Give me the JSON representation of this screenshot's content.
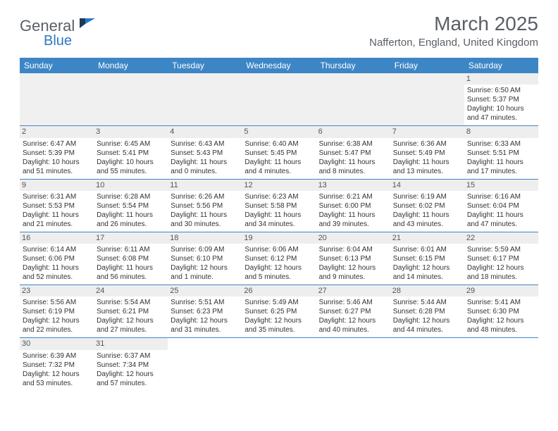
{
  "brand": {
    "name1": "General",
    "name2": "Blue"
  },
  "title": "March 2025",
  "location": "Nafferton, England, United Kingdom",
  "colors": {
    "header_bg": "#3d86c6",
    "header_text": "#ffffff",
    "text": "#333333",
    "title_color": "#5a5f66",
    "brand_blue": "#2b79c2",
    "daynum_bg": "#eeeeee",
    "border": "#3d86c6"
  },
  "weekdays": [
    "Sunday",
    "Monday",
    "Tuesday",
    "Wednesday",
    "Thursday",
    "Friday",
    "Saturday"
  ],
  "weeks": [
    [
      null,
      null,
      null,
      null,
      null,
      null,
      {
        "d": "1",
        "sr": "Sunrise: 6:50 AM",
        "ss": "Sunset: 5:37 PM",
        "dl1": "Daylight: 10 hours",
        "dl2": "and 47 minutes."
      }
    ],
    [
      {
        "d": "2",
        "sr": "Sunrise: 6:47 AM",
        "ss": "Sunset: 5:39 PM",
        "dl1": "Daylight: 10 hours",
        "dl2": "and 51 minutes."
      },
      {
        "d": "3",
        "sr": "Sunrise: 6:45 AM",
        "ss": "Sunset: 5:41 PM",
        "dl1": "Daylight: 10 hours",
        "dl2": "and 55 minutes."
      },
      {
        "d": "4",
        "sr": "Sunrise: 6:43 AM",
        "ss": "Sunset: 5:43 PM",
        "dl1": "Daylight: 11 hours",
        "dl2": "and 0 minutes."
      },
      {
        "d": "5",
        "sr": "Sunrise: 6:40 AM",
        "ss": "Sunset: 5:45 PM",
        "dl1": "Daylight: 11 hours",
        "dl2": "and 4 minutes."
      },
      {
        "d": "6",
        "sr": "Sunrise: 6:38 AM",
        "ss": "Sunset: 5:47 PM",
        "dl1": "Daylight: 11 hours",
        "dl2": "and 8 minutes."
      },
      {
        "d": "7",
        "sr": "Sunrise: 6:36 AM",
        "ss": "Sunset: 5:49 PM",
        "dl1": "Daylight: 11 hours",
        "dl2": "and 13 minutes."
      },
      {
        "d": "8",
        "sr": "Sunrise: 6:33 AM",
        "ss": "Sunset: 5:51 PM",
        "dl1": "Daylight: 11 hours",
        "dl2": "and 17 minutes."
      }
    ],
    [
      {
        "d": "9",
        "sr": "Sunrise: 6:31 AM",
        "ss": "Sunset: 5:53 PM",
        "dl1": "Daylight: 11 hours",
        "dl2": "and 21 minutes."
      },
      {
        "d": "10",
        "sr": "Sunrise: 6:28 AM",
        "ss": "Sunset: 5:54 PM",
        "dl1": "Daylight: 11 hours",
        "dl2": "and 26 minutes."
      },
      {
        "d": "11",
        "sr": "Sunrise: 6:26 AM",
        "ss": "Sunset: 5:56 PM",
        "dl1": "Daylight: 11 hours",
        "dl2": "and 30 minutes."
      },
      {
        "d": "12",
        "sr": "Sunrise: 6:23 AM",
        "ss": "Sunset: 5:58 PM",
        "dl1": "Daylight: 11 hours",
        "dl2": "and 34 minutes."
      },
      {
        "d": "13",
        "sr": "Sunrise: 6:21 AM",
        "ss": "Sunset: 6:00 PM",
        "dl1": "Daylight: 11 hours",
        "dl2": "and 39 minutes."
      },
      {
        "d": "14",
        "sr": "Sunrise: 6:19 AM",
        "ss": "Sunset: 6:02 PM",
        "dl1": "Daylight: 11 hours",
        "dl2": "and 43 minutes."
      },
      {
        "d": "15",
        "sr": "Sunrise: 6:16 AM",
        "ss": "Sunset: 6:04 PM",
        "dl1": "Daylight: 11 hours",
        "dl2": "and 47 minutes."
      }
    ],
    [
      {
        "d": "16",
        "sr": "Sunrise: 6:14 AM",
        "ss": "Sunset: 6:06 PM",
        "dl1": "Daylight: 11 hours",
        "dl2": "and 52 minutes."
      },
      {
        "d": "17",
        "sr": "Sunrise: 6:11 AM",
        "ss": "Sunset: 6:08 PM",
        "dl1": "Daylight: 11 hours",
        "dl2": "and 56 minutes."
      },
      {
        "d": "18",
        "sr": "Sunrise: 6:09 AM",
        "ss": "Sunset: 6:10 PM",
        "dl1": "Daylight: 12 hours",
        "dl2": "and 1 minute."
      },
      {
        "d": "19",
        "sr": "Sunrise: 6:06 AM",
        "ss": "Sunset: 6:12 PM",
        "dl1": "Daylight: 12 hours",
        "dl2": "and 5 minutes."
      },
      {
        "d": "20",
        "sr": "Sunrise: 6:04 AM",
        "ss": "Sunset: 6:13 PM",
        "dl1": "Daylight: 12 hours",
        "dl2": "and 9 minutes."
      },
      {
        "d": "21",
        "sr": "Sunrise: 6:01 AM",
        "ss": "Sunset: 6:15 PM",
        "dl1": "Daylight: 12 hours",
        "dl2": "and 14 minutes."
      },
      {
        "d": "22",
        "sr": "Sunrise: 5:59 AM",
        "ss": "Sunset: 6:17 PM",
        "dl1": "Daylight: 12 hours",
        "dl2": "and 18 minutes."
      }
    ],
    [
      {
        "d": "23",
        "sr": "Sunrise: 5:56 AM",
        "ss": "Sunset: 6:19 PM",
        "dl1": "Daylight: 12 hours",
        "dl2": "and 22 minutes."
      },
      {
        "d": "24",
        "sr": "Sunrise: 5:54 AM",
        "ss": "Sunset: 6:21 PM",
        "dl1": "Daylight: 12 hours",
        "dl2": "and 27 minutes."
      },
      {
        "d": "25",
        "sr": "Sunrise: 5:51 AM",
        "ss": "Sunset: 6:23 PM",
        "dl1": "Daylight: 12 hours",
        "dl2": "and 31 minutes."
      },
      {
        "d": "26",
        "sr": "Sunrise: 5:49 AM",
        "ss": "Sunset: 6:25 PM",
        "dl1": "Daylight: 12 hours",
        "dl2": "and 35 minutes."
      },
      {
        "d": "27",
        "sr": "Sunrise: 5:46 AM",
        "ss": "Sunset: 6:27 PM",
        "dl1": "Daylight: 12 hours",
        "dl2": "and 40 minutes."
      },
      {
        "d": "28",
        "sr": "Sunrise: 5:44 AM",
        "ss": "Sunset: 6:28 PM",
        "dl1": "Daylight: 12 hours",
        "dl2": "and 44 minutes."
      },
      {
        "d": "29",
        "sr": "Sunrise: 5:41 AM",
        "ss": "Sunset: 6:30 PM",
        "dl1": "Daylight: 12 hours",
        "dl2": "and 48 minutes."
      }
    ],
    [
      {
        "d": "30",
        "sr": "Sunrise: 6:39 AM",
        "ss": "Sunset: 7:32 PM",
        "dl1": "Daylight: 12 hours",
        "dl2": "and 53 minutes."
      },
      {
        "d": "31",
        "sr": "Sunrise: 6:37 AM",
        "ss": "Sunset: 7:34 PM",
        "dl1": "Daylight: 12 hours",
        "dl2": "and 57 minutes."
      },
      null,
      null,
      null,
      null,
      null
    ]
  ]
}
